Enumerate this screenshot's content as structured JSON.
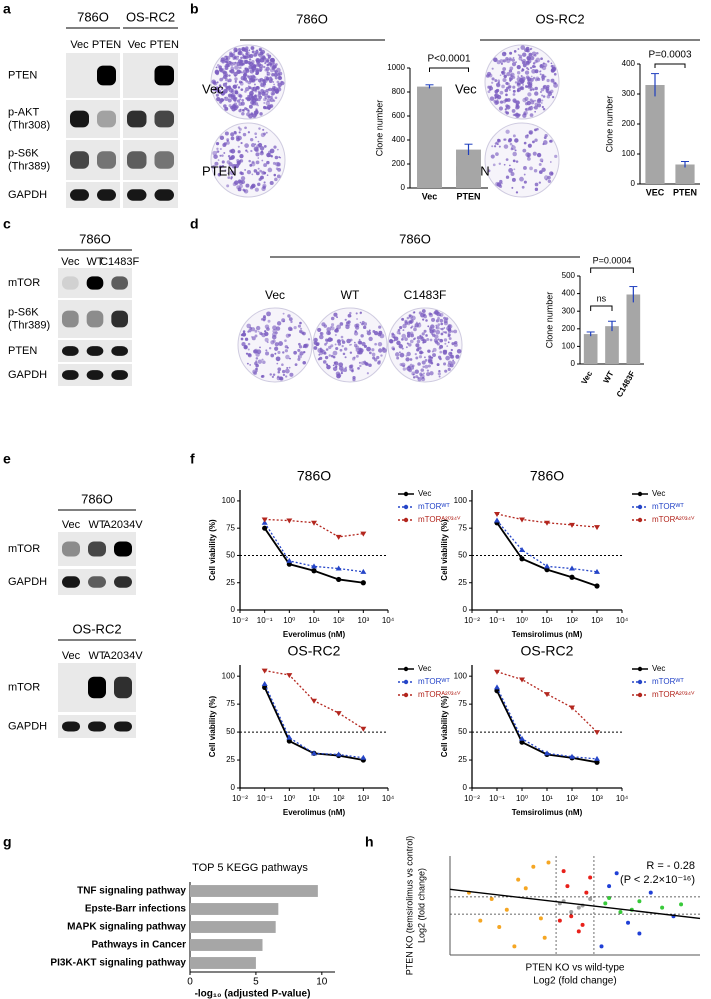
{
  "panel_labels": [
    "a",
    "b",
    "c",
    "d",
    "e",
    "f",
    "g",
    "h"
  ],
  "blots": {
    "a": {
      "groups": [
        {
          "title": "786O",
          "lanes": [
            "Vec",
            "PTEN"
          ]
        },
        {
          "title": "OS-RC2",
          "lanes": [
            "Vec",
            "PTEN"
          ]
        }
      ],
      "rows": [
        [
          "PTEN"
        ],
        [
          "p-AKT",
          "(Thr308)"
        ],
        [
          "p-S6K",
          "(Thr389)"
        ],
        [
          "GAPDH"
        ]
      ]
    },
    "c": {
      "groups": [
        {
          "title": "786O",
          "lanes": [
            "Vec",
            "WT",
            "C1483F"
          ]
        }
      ],
      "rows": [
        [
          "mTOR"
        ],
        [
          "p-S6K",
          "(Thr389)"
        ],
        [
          "PTEN"
        ],
        [
          "GAPDH"
        ]
      ]
    },
    "e": [
      {
        "groups": [
          {
            "title": "786O",
            "lanes": [
              "Vec",
              "WT",
              "A2034V"
            ]
          }
        ],
        "rows": [
          [
            "mTOR"
          ],
          [
            "GAPDH"
          ]
        ]
      },
      {
        "groups": [
          {
            "title": "OS-RC2",
            "lanes": [
              "Vec",
              "WT",
              "A2034V"
            ]
          }
        ],
        "rows": [
          [
            "mTOR"
          ],
          [
            "GAPDH"
          ]
        ]
      }
    ]
  },
  "colonies": {
    "b": {
      "groups": [
        "786O",
        "OS-RC2"
      ],
      "rows": [
        "Vec",
        "PTEN"
      ]
    },
    "d": {
      "title": "786O",
      "labels": [
        "Vec",
        "WT",
        "C1483F"
      ]
    }
  },
  "chart_data": [
    {
      "type": "bar",
      "categories": [
        "Vec",
        "PTEN"
      ],
      "values": [
        845,
        320
      ],
      "errors": [
        15,
        45
      ],
      "color": "#a6a6a6",
      "ylim": [
        0,
        1000
      ],
      "yticks": [
        0,
        200,
        400,
        600,
        800,
        1000
      ],
      "ylabel": "Clone number",
      "annotations": [
        "P<0.0001"
      ]
    },
    {
      "type": "bar",
      "categories": [
        "VEC",
        "PTEN"
      ],
      "values": [
        330,
        65
      ],
      "errors": [
        38,
        10
      ],
      "color": "#a6a6a6",
      "ylim": [
        0,
        400
      ],
      "yticks": [
        0,
        100,
        200,
        300,
        400
      ],
      "ylabel": "Clone number",
      "annotations": [
        "P=0.0003"
      ]
    },
    {
      "type": "bar",
      "categories": [
        "Vec",
        "WT",
        "C1483F"
      ],
      "values": [
        170,
        215,
        395
      ],
      "errors": [
        12,
        28,
        45
      ],
      "color": "#a6a6a6",
      "ylim": [
        0,
        500
      ],
      "yticks": [
        0,
        100,
        200,
        300,
        400,
        500
      ],
      "ylabel": "Clone number",
      "annotations": [
        "P=0.0004",
        "ns"
      ]
    },
    {
      "type": "line",
      "title": "786O",
      "xlabel": "Everolimus (nM)",
      "ylabel": "Cell viability (%)",
      "xscale": "log",
      "x": [
        0.1,
        1,
        10,
        100,
        1000
      ],
      "xlim": [
        0.01,
        10000
      ],
      "xticks": [
        {
          "value": 0.01,
          "label": "10⁻²"
        },
        {
          "value": 0.1,
          "label": "10⁻¹"
        },
        {
          "value": 1,
          "label": "10⁰"
        },
        {
          "value": 10,
          "label": "10¹"
        },
        {
          "value": 100,
          "label": "10²"
        },
        {
          "value": 1000,
          "label": "10³"
        },
        {
          "value": 10000,
          "label": "10⁴"
        }
      ],
      "ylim": [
        0,
        110
      ],
      "yticks": [
        0,
        25,
        50,
        75,
        100
      ],
      "hline": 50,
      "series": [
        {
          "name": "Vec",
          "color": "#000000",
          "values": [
            75,
            42,
            36,
            28,
            25
          ]
        },
        {
          "name": "mTORᵂᵀ",
          "color": "#2646c8",
          "values": [
            80,
            45,
            40,
            38,
            35
          ]
        },
        {
          "name": "mTORᴬ²⁰³⁴ⱽ",
          "color": "#b3261e",
          "values": [
            83,
            82,
            80,
            67,
            70
          ]
        }
      ]
    },
    {
      "type": "line",
      "title": "786O",
      "xlabel": "Temsirolimus (nM)",
      "ylabel": "Cell viability (%)",
      "xscale": "log",
      "x": [
        0.1,
        1,
        10,
        100,
        1000
      ],
      "xlim": [
        0.01,
        10000
      ],
      "xticks": [
        {
          "value": 0.01,
          "label": "10⁻²"
        },
        {
          "value": 0.1,
          "label": "10⁻¹"
        },
        {
          "value": 1,
          "label": "10⁰"
        },
        {
          "value": 10,
          "label": "10¹"
        },
        {
          "value": 100,
          "label": "10²"
        },
        {
          "value": 1000,
          "label": "10³"
        },
        {
          "value": 10000,
          "label": "10⁴"
        }
      ],
      "ylim": [
        0,
        110
      ],
      "yticks": [
        0,
        25,
        50,
        75,
        100
      ],
      "hline": 50,
      "series": [
        {
          "name": "Vec",
          "color": "#000000",
          "values": [
            80,
            47,
            37,
            30,
            22
          ]
        },
        {
          "name": "mTORᵂᵀ",
          "color": "#2646c8",
          "values": [
            82,
            55,
            40,
            38,
            35
          ]
        },
        {
          "name": "mTORᴬ²⁰³⁴ⱽ",
          "color": "#b3261e",
          "values": [
            88,
            83,
            80,
            78,
            76
          ]
        }
      ]
    },
    {
      "type": "line",
      "title": "OS-RC2",
      "xlabel": "Everolimus (nM)",
      "ylabel": "Cell viability (%)",
      "xscale": "log",
      "x": [
        0.1,
        1,
        10,
        100,
        1000
      ],
      "xlim": [
        0.01,
        10000
      ],
      "xticks": [
        {
          "value": 0.01,
          "label": "10⁻²"
        },
        {
          "value": 0.1,
          "label": "10⁻¹"
        },
        {
          "value": 1,
          "label": "10⁰"
        },
        {
          "value": 10,
          "label": "10¹"
        },
        {
          "value": 100,
          "label": "10²"
        },
        {
          "value": 1000,
          "label": "10³"
        },
        {
          "value": 10000,
          "label": "10⁴"
        }
      ],
      "ylim": [
        0,
        110
      ],
      "yticks": [
        0,
        25,
        50,
        75,
        100
      ],
      "hline": 50,
      "series": [
        {
          "name": "Vec",
          "color": "#000000",
          "values": [
            90,
            42,
            31,
            29,
            25
          ]
        },
        {
          "name": "mTORᵂᵀ",
          "color": "#2646c8",
          "values": [
            93,
            45,
            31,
            30,
            27
          ]
        },
        {
          "name": "mTORᴬ²⁰³⁴ⱽ",
          "color": "#b3261e",
          "values": [
            105,
            101,
            78,
            67,
            53
          ]
        }
      ]
    },
    {
      "type": "line",
      "title": "OS-RC2",
      "xlabel": "Temsirolimus (nM)",
      "ylabel": "Cell viability (%)",
      "xscale": "log",
      "x": [
        0.1,
        1,
        10,
        100,
        1000
      ],
      "xlim": [
        0.01,
        10000
      ],
      "xticks": [
        {
          "value": 0.01,
          "label": "10⁻²"
        },
        {
          "value": 0.1,
          "label": "10⁻¹"
        },
        {
          "value": 1,
          "label": "10⁰"
        },
        {
          "value": 10,
          "label": "10¹"
        },
        {
          "value": 100,
          "label": "10²"
        },
        {
          "value": 1000,
          "label": "10³"
        },
        {
          "value": 10000,
          "label": "10⁴"
        }
      ],
      "ylim": [
        0,
        110
      ],
      "yticks": [
        0,
        25,
        50,
        75,
        100
      ],
      "hline": 50,
      "series": [
        {
          "name": "Vec",
          "color": "#000000",
          "values": [
            87,
            41,
            30,
            27,
            23
          ]
        },
        {
          "name": "mTORᵂᵀ",
          "color": "#2646c8",
          "values": [
            90,
            44,
            31,
            28,
            26
          ]
        },
        {
          "name": "mTORᴬ²⁰³⁴ⱽ",
          "color": "#b3261e",
          "values": [
            104,
            97,
            84,
            72,
            50
          ]
        }
      ]
    },
    {
      "type": "barh",
      "title": "TOP 5 KEGG pathways",
      "xlabel": "-log₁₀ (adjusted P-value)",
      "categories": [
        "TNF signaling pathway",
        "Epste-Barr infections",
        "MAPK signaling pathway",
        "Pathways in Cancer",
        "PI3K-AKT signaling pathway"
      ],
      "values": [
        9.7,
        6.7,
        6.5,
        5.5,
        5.0
      ],
      "color": "#a6a6a6",
      "xlim": [
        0,
        11
      ],
      "xticks": [
        0,
        5,
        10
      ]
    },
    {
      "type": "scatter",
      "xlabel": [
        "PTEN KO vs wild-type",
        "Log2 (fold change)"
      ],
      "ylabel": [
        "PTEN KO (temsirolimus vs control)",
        "Log2 (fold change)"
      ],
      "annotations": [
        "R = - 0.28",
        "(P < 2.2×10⁻¹⁶)"
      ],
      "xlim": [
        -3.3,
        3.3
      ],
      "ylim": [
        -2.3,
        2.3
      ],
      "vlines": [
        -0.5,
        0.5
      ],
      "hlines": [
        -0.4,
        0.4
      ],
      "fit": {
        "x": [
          -3.3,
          3.3
        ],
        "y": [
          0.75,
          -0.6
        ]
      },
      "series": [
        {
          "color": "#f5a623",
          "x": [
            -1.5,
            -2.2,
            -0.9,
            -1.1,
            -2.8,
            -0.8,
            -1.8,
            -1.3,
            -2.0,
            -0.7,
            -1.6,
            -2.5
          ],
          "values": [
            1.2,
            0.3,
            -0.6,
            1.8,
            0.6,
            -1.5,
            -0.2,
            0.8,
            -1.0,
            2.0,
            -1.9,
            -0.7
          ]
        },
        {
          "color": "#e8201a",
          "x": [
            -0.2,
            0.3,
            -0.4,
            0.1,
            0.4,
            -0.1,
            0.2,
            -0.3
          ],
          "values": [
            0.9,
            0.6,
            -0.7,
            -1.2,
            1.3,
            -0.5,
            -0.9,
            1.6
          ]
        },
        {
          "color": "#9e9e9e",
          "x": [
            -0.3,
            0.1,
            0.4,
            -0.1,
            0.2,
            -0.4
          ],
          "values": [
            0.2,
            -0.1,
            0.3,
            -0.3,
            0.0,
            0.1
          ]
        },
        {
          "color": "#38c93a",
          "x": [
            0.8,
            1.2,
            1.7,
            2.3,
            0.9,
            1.5,
            2.8
          ],
          "values": [
            0.1,
            -0.3,
            0.2,
            -0.1,
            0.35,
            -0.2,
            0.05
          ]
        },
        {
          "color": "#1f3fd6",
          "x": [
            0.9,
            1.4,
            2.0,
            2.6,
            1.1,
            1.7,
            0.7
          ],
          "values": [
            0.9,
            -0.8,
            0.6,
            -0.5,
            1.5,
            -1.3,
            -1.9
          ]
        }
      ]
    }
  ]
}
